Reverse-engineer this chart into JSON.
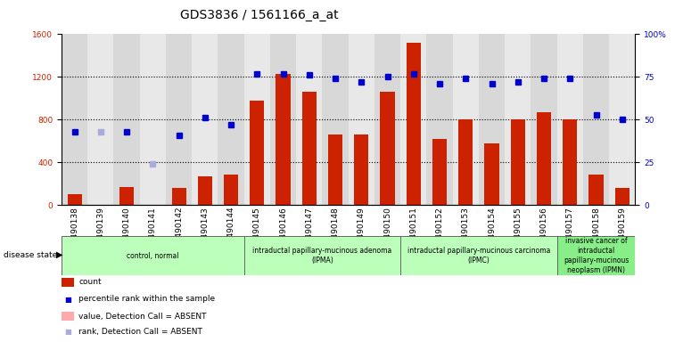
{
  "title": "GDS3836 / 1561166_a_at",
  "samples": [
    "GSM490138",
    "GSM490139",
    "GSM490140",
    "GSM490141",
    "GSM490142",
    "GSM490143",
    "GSM490144",
    "GSM490145",
    "GSM490146",
    "GSM490147",
    "GSM490148",
    "GSM490149",
    "GSM490150",
    "GSM490151",
    "GSM490152",
    "GSM490153",
    "GSM490154",
    "GSM490155",
    "GSM490156",
    "GSM490157",
    "GSM490158",
    "GSM490159"
  ],
  "count_values": [
    100,
    0,
    170,
    0,
    160,
    270,
    290,
    980,
    1230,
    1060,
    660,
    660,
    1060,
    1520,
    620,
    800,
    580,
    800,
    870,
    800,
    290,
    160
  ],
  "absent_count": [
    false,
    true,
    false,
    true,
    false,
    false,
    false,
    false,
    false,
    false,
    false,
    false,
    false,
    false,
    false,
    false,
    false,
    false,
    false,
    false,
    false,
    false
  ],
  "percentile_values": [
    43,
    43,
    43,
    24,
    41,
    51,
    47,
    77,
    77,
    76,
    74,
    72,
    75,
    77,
    71,
    74,
    71,
    72,
    74,
    74,
    53,
    50
  ],
  "absent_percentile": [
    false,
    true,
    false,
    true,
    false,
    false,
    false,
    false,
    false,
    false,
    false,
    false,
    false,
    false,
    false,
    false,
    false,
    false,
    false,
    false,
    false,
    false
  ],
  "disease_groups": [
    {
      "label": "control, normal",
      "start": 0,
      "end": 7
    },
    {
      "label": "intraductal papillary-mucinous adenoma\n(IPMA)",
      "start": 7,
      "end": 13
    },
    {
      "label": "intraductal papillary-mucinous carcinoma\n(IPMC)",
      "start": 13,
      "end": 19
    },
    {
      "label": "invasive cancer of\nintraductal\npapillary-mucinous\nneoplasm (IPMN)",
      "start": 19,
      "end": 22
    }
  ],
  "ylim_left": [
    0,
    1600
  ],
  "ylim_right": [
    0,
    100
  ],
  "left_ticks": [
    0,
    400,
    800,
    1200,
    1600
  ],
  "right_ticks": [
    0,
    25,
    50,
    75,
    100
  ],
  "bar_color": "#cc2200",
  "absent_bar_color": "#ffaaaa",
  "dot_color": "#0000cc",
  "absent_dot_color": "#aaaadd",
  "bg_color": "#ffffff",
  "title_fontsize": 10,
  "tick_fontsize": 6.5
}
